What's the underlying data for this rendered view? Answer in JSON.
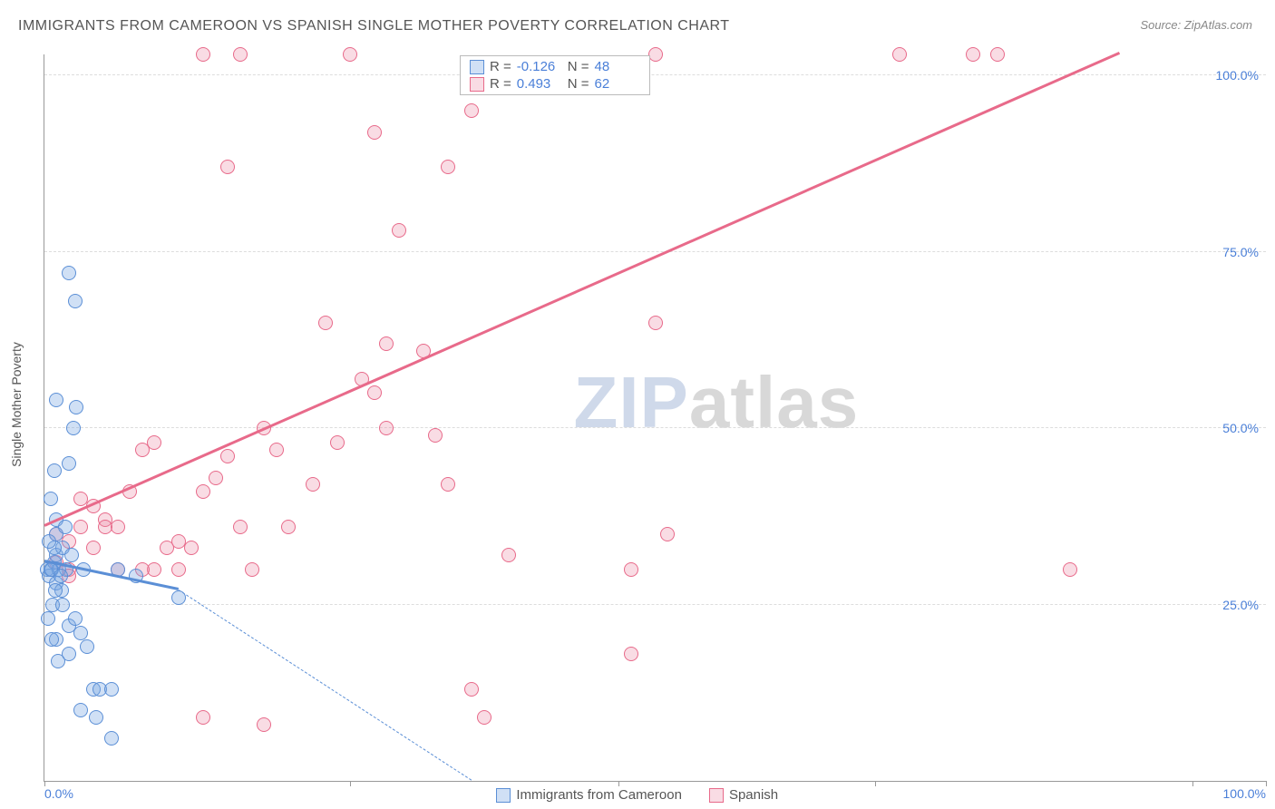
{
  "title": "IMMIGRANTS FROM CAMEROON VS SPANISH SINGLE MOTHER POVERTY CORRELATION CHART",
  "source": "Source: ZipAtlas.com",
  "y_axis_label": "Single Mother Poverty",
  "watermark": {
    "part1": "ZIP",
    "part2": "atlas",
    "color1": "#cfd9ea",
    "color2": "#d8d8d8"
  },
  "colors": {
    "series1_stroke": "#5b8fd6",
    "series1_fill": "rgba(120,165,225,0.35)",
    "series2_stroke": "#e86a8a",
    "series2_fill": "rgba(235,140,165,0.30)",
    "grid": "#dddddd",
    "axis": "#999999",
    "tick_text": "#4a7fd8",
    "title_text": "#555555",
    "background": "#ffffff"
  },
  "chart": {
    "type": "scatter",
    "xlim": [
      0,
      100
    ],
    "ylim": [
      0,
      103
    ],
    "y_ticks": [
      25.0,
      50.0,
      75.0,
      100.0
    ],
    "y_tick_labels": [
      "25.0%",
      "50.0%",
      "75.0%",
      "100.0%"
    ],
    "x_ticks": [
      0,
      25,
      47,
      68,
      94,
      100
    ],
    "x_tick_labels_shown": {
      "0": "0.0%",
      "100": "100.0%"
    },
    "marker_radius": 8,
    "marker_stroke_width": 1.5,
    "trend_line_width": 3
  },
  "legend": {
    "series1": "Immigrants from Cameroon",
    "series2": "Spanish"
  },
  "stats": {
    "series1": {
      "R": "-0.126",
      "N": "48"
    },
    "series2": {
      "R": "0.493",
      "N": "62"
    }
  },
  "trend_lines": {
    "series1": {
      "x1": 0,
      "y1": 31,
      "x2": 11,
      "y2": 27,
      "dash_to_x": 35,
      "dash_to_y": 0
    },
    "series2": {
      "x1": 0,
      "y1": 36,
      "x2": 88,
      "y2": 103
    }
  },
  "series1_points": [
    [
      0.2,
      30
    ],
    [
      0.4,
      29
    ],
    [
      0.6,
      30
    ],
    [
      0.8,
      31
    ],
    [
      1.0,
      28
    ],
    [
      1.0,
      32
    ],
    [
      1.2,
      30
    ],
    [
      1.4,
      27
    ],
    [
      1.5,
      33
    ],
    [
      1.0,
      35
    ],
    [
      0.5,
      40
    ],
    [
      0.8,
      44
    ],
    [
      2.0,
      45
    ],
    [
      2.4,
      50
    ],
    [
      1.0,
      54
    ],
    [
      2.6,
      53
    ],
    [
      0.7,
      25
    ],
    [
      1.5,
      25
    ],
    [
      2.0,
      22
    ],
    [
      2.5,
      23
    ],
    [
      3.0,
      21
    ],
    [
      1.0,
      20
    ],
    [
      3.5,
      19
    ],
    [
      2.0,
      18
    ],
    [
      4.0,
      13
    ],
    [
      4.5,
      13
    ],
    [
      5.5,
      13
    ],
    [
      3.0,
      10
    ],
    [
      4.2,
      9
    ],
    [
      5.5,
      6
    ],
    [
      2.0,
      72
    ],
    [
      2.5,
      68
    ],
    [
      0.5,
      30
    ],
    [
      0.8,
      33
    ],
    [
      1.8,
      30
    ],
    [
      6.0,
      30
    ],
    [
      7.5,
      29
    ],
    [
      0.3,
      23
    ],
    [
      0.9,
      27
    ],
    [
      1.3,
      29
    ],
    [
      0.4,
      34
    ],
    [
      1.0,
      37
    ],
    [
      1.7,
      36
    ],
    [
      0.6,
      20
    ],
    [
      1.1,
      17
    ],
    [
      11.0,
      26
    ],
    [
      3.2,
      30
    ],
    [
      2.2,
      32
    ]
  ],
  "series2_points": [
    [
      1,
      31
    ],
    [
      2,
      30
    ],
    [
      2,
      34
    ],
    [
      3,
      36
    ],
    [
      3,
      40
    ],
    [
      4,
      39
    ],
    [
      5,
      37
    ],
    [
      5,
      36
    ],
    [
      6,
      36
    ],
    [
      7,
      41
    ],
    [
      8,
      47
    ],
    [
      9,
      48
    ],
    [
      10,
      33
    ],
    [
      11,
      34
    ],
    [
      12,
      33
    ],
    [
      13,
      41
    ],
    [
      14,
      43
    ],
    [
      15,
      46
    ],
    [
      13,
      9
    ],
    [
      15,
      87
    ],
    [
      13,
      103
    ],
    [
      16,
      103
    ],
    [
      18,
      8
    ],
    [
      19,
      47
    ],
    [
      20,
      36
    ],
    [
      18,
      50
    ],
    [
      22,
      42
    ],
    [
      23,
      65
    ],
    [
      24,
      48
    ],
    [
      25,
      103
    ],
    [
      26,
      57
    ],
    [
      27,
      55
    ],
    [
      28,
      50
    ],
    [
      27,
      92
    ],
    [
      28,
      62
    ],
    [
      29,
      78
    ],
    [
      33,
      42
    ],
    [
      32,
      49
    ],
    [
      35,
      13
    ],
    [
      36,
      9
    ],
    [
      38,
      32
    ],
    [
      31,
      61
    ],
    [
      33,
      87
    ],
    [
      35,
      95
    ],
    [
      48,
      18
    ],
    [
      50,
      103
    ],
    [
      51,
      35
    ],
    [
      48,
      30
    ],
    [
      70,
      103
    ],
    [
      76,
      103
    ],
    [
      78,
      103
    ],
    [
      84,
      30
    ],
    [
      50,
      65
    ],
    [
      4,
      33
    ],
    [
      6,
      30
    ],
    [
      2,
      29
    ],
    [
      1,
      35
    ],
    [
      9,
      30
    ],
    [
      11,
      30
    ],
    [
      16,
      36
    ],
    [
      17,
      30
    ],
    [
      8,
      30
    ]
  ]
}
